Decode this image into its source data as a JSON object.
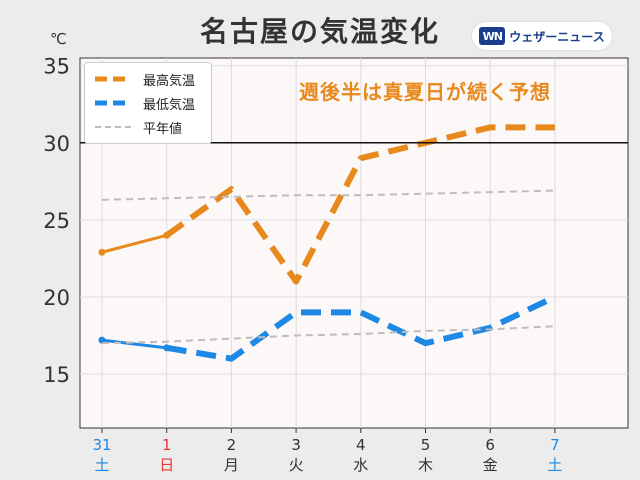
{
  "header": {
    "title": "名古屋の気温変化",
    "unit": "℃",
    "brand_mark": "WN",
    "brand_text": "ウェザーニュース",
    "headline": "週後半は真夏日が続く予想"
  },
  "legend": {
    "items": [
      {
        "label": "最高気温",
        "color": "#e8891e",
        "style": "dashed-thick"
      },
      {
        "label": "最低気温",
        "color": "#1e88e5",
        "style": "dashed-thick"
      },
      {
        "label": "平年値",
        "color": "#bdbdbd",
        "style": "dashed-thin"
      }
    ]
  },
  "chart_data": {
    "type": "line",
    "title": "名古屋の気温変化",
    "ylabel": "℃",
    "ylim": [
      11.5,
      35.5
    ],
    "yticks": [
      15,
      20,
      25,
      30,
      35
    ],
    "reference_line": 30,
    "categories": [
      {
        "day": "31",
        "weekday": "土",
        "color": "#1e88e5"
      },
      {
        "day": "1",
        "weekday": "日",
        "color": "#e53935"
      },
      {
        "day": "2",
        "weekday": "月",
        "color": "#333333"
      },
      {
        "day": "3",
        "weekday": "火",
        "color": "#333333"
      },
      {
        "day": "4",
        "weekday": "水",
        "color": "#333333"
      },
      {
        "day": "5",
        "weekday": "木",
        "color": "#333333"
      },
      {
        "day": "6",
        "weekday": "金",
        "color": "#333333"
      },
      {
        "day": "7",
        "weekday": "土",
        "color": "#1e88e5"
      }
    ],
    "series": [
      {
        "name": "最高気温",
        "color": "#e8891e",
        "values": [
          22.9,
          24,
          27,
          21,
          29,
          30,
          31,
          31
        ],
        "observed_count": 2
      },
      {
        "name": "最低気温",
        "color": "#1e88e5",
        "values": [
          17.2,
          16.7,
          16,
          19,
          19,
          17,
          18,
          20
        ],
        "observed_count": 2
      },
      {
        "name": "平年値",
        "color": "#bdbdbd",
        "values": [
          26.3,
          26.4,
          26.5,
          26.6,
          26.6,
          26.7,
          26.8,
          26.9
        ],
        "style": "dashed-thin"
      },
      {
        "name": "平年値",
        "color": "#bdbdbd",
        "values": [
          17.0,
          17.1,
          17.3,
          17.5,
          17.6,
          17.8,
          17.9,
          18.1
        ],
        "style": "dashed-thin"
      }
    ]
  }
}
